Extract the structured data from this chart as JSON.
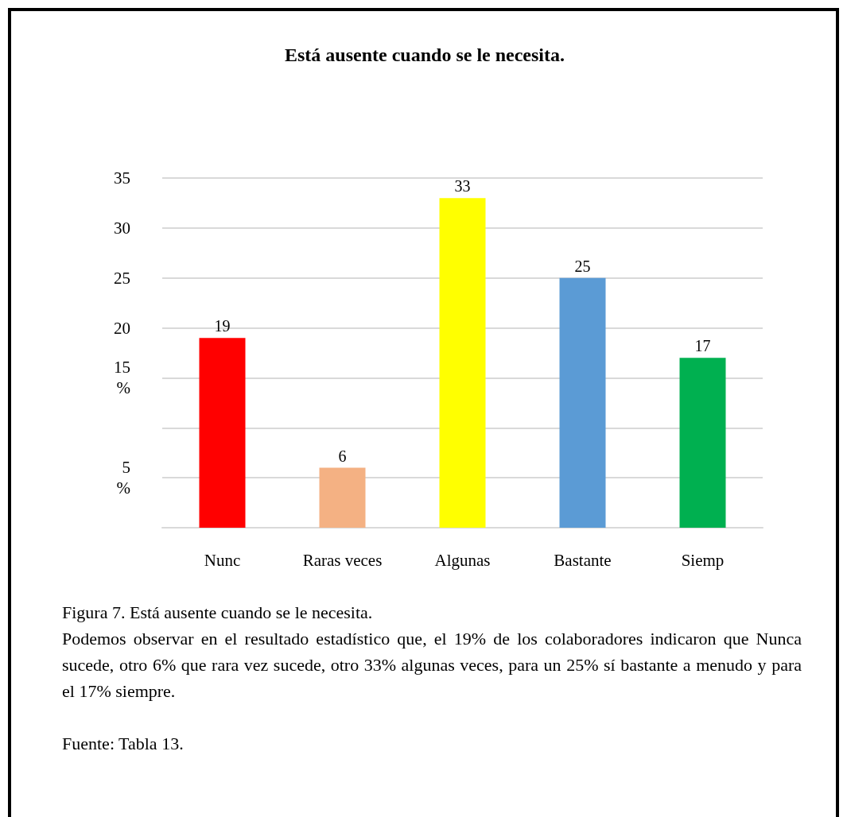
{
  "chart_data": {
    "type": "bar",
    "title": "Está ausente cuando se le necesita.",
    "categories": [
      "Nunc",
      "Raras veces",
      "Algunas",
      "Bastante",
      "Siemp"
    ],
    "values": [
      19,
      6,
      33,
      25,
      17
    ],
    "colors": [
      "#ff0000",
      "#f4b183",
      "#ffff00",
      "#5b9bd5",
      "#00b050"
    ],
    "ylim": [
      0,
      35
    ],
    "yticks": [
      {
        "value": 0,
        "label": null
      },
      {
        "value": 5,
        "label": "5\n%"
      },
      {
        "value": 10,
        "label": null
      },
      {
        "value": 15,
        "label": "15\n%"
      },
      20,
      25,
      30,
      35
    ],
    "grid": "y",
    "data_labels": true,
    "annotations": [
      "Figura 7.    Está ausente cuando se le necesita.",
      "Podemos observar en el resultado estadístico que, el 19% de los colaboradores indicaron que Nunca sucede, otro 6% que rara vez sucede, otro 33% algunas veces, para un 25% sí bastante a menudo y para el 17% siempre.",
      "Fuente: Tabla 13."
    ]
  }
}
